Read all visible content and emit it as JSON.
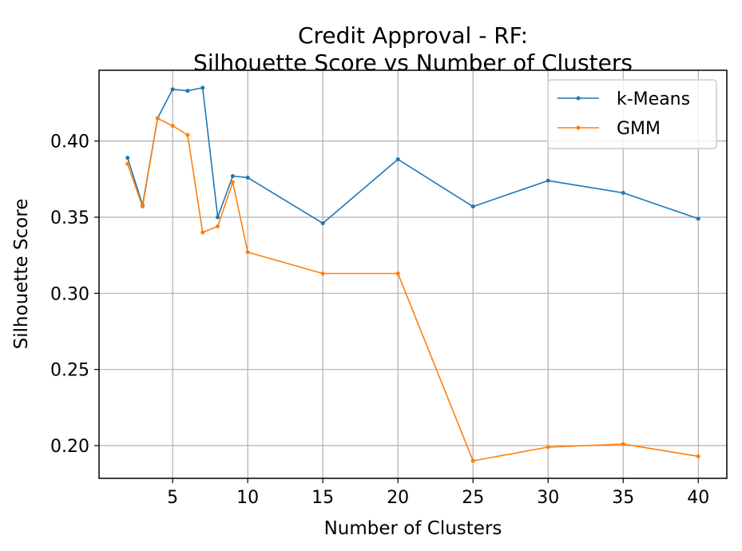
{
  "chart_data": {
    "type": "line",
    "title": "Credit Approval - RF:",
    "subtitle": "Silhouette Score vs Number of Clusters",
    "xlabel": "Number of Clusters",
    "ylabel": "Silhouette Score",
    "x": [
      2,
      3,
      4,
      5,
      6,
      7,
      8,
      9,
      10,
      15,
      20,
      25,
      30,
      35,
      40
    ],
    "xticks": [
      5,
      10,
      15,
      20,
      25,
      30,
      35,
      40
    ],
    "yticks": [
      0.2,
      0.25,
      0.3,
      0.35,
      0.4
    ],
    "xlim": [
      0.1,
      41.9
    ],
    "ylim": [
      0.1785,
      0.4465
    ],
    "grid": true,
    "legend_position": "top-right",
    "series": [
      {
        "name": "k-Means",
        "color": "#1f77b4",
        "values": [
          0.389,
          0.358,
          0.415,
          0.434,
          0.433,
          0.435,
          0.35,
          0.377,
          0.376,
          0.346,
          0.388,
          0.357,
          0.374,
          0.366,
          0.349
        ]
      },
      {
        "name": "GMM",
        "color": "#ff7f0e",
        "values": [
          0.385,
          0.357,
          0.415,
          0.41,
          0.404,
          0.34,
          0.344,
          0.373,
          0.327,
          0.313,
          0.313,
          0.19,
          0.199,
          0.201,
          0.193
        ]
      }
    ]
  }
}
